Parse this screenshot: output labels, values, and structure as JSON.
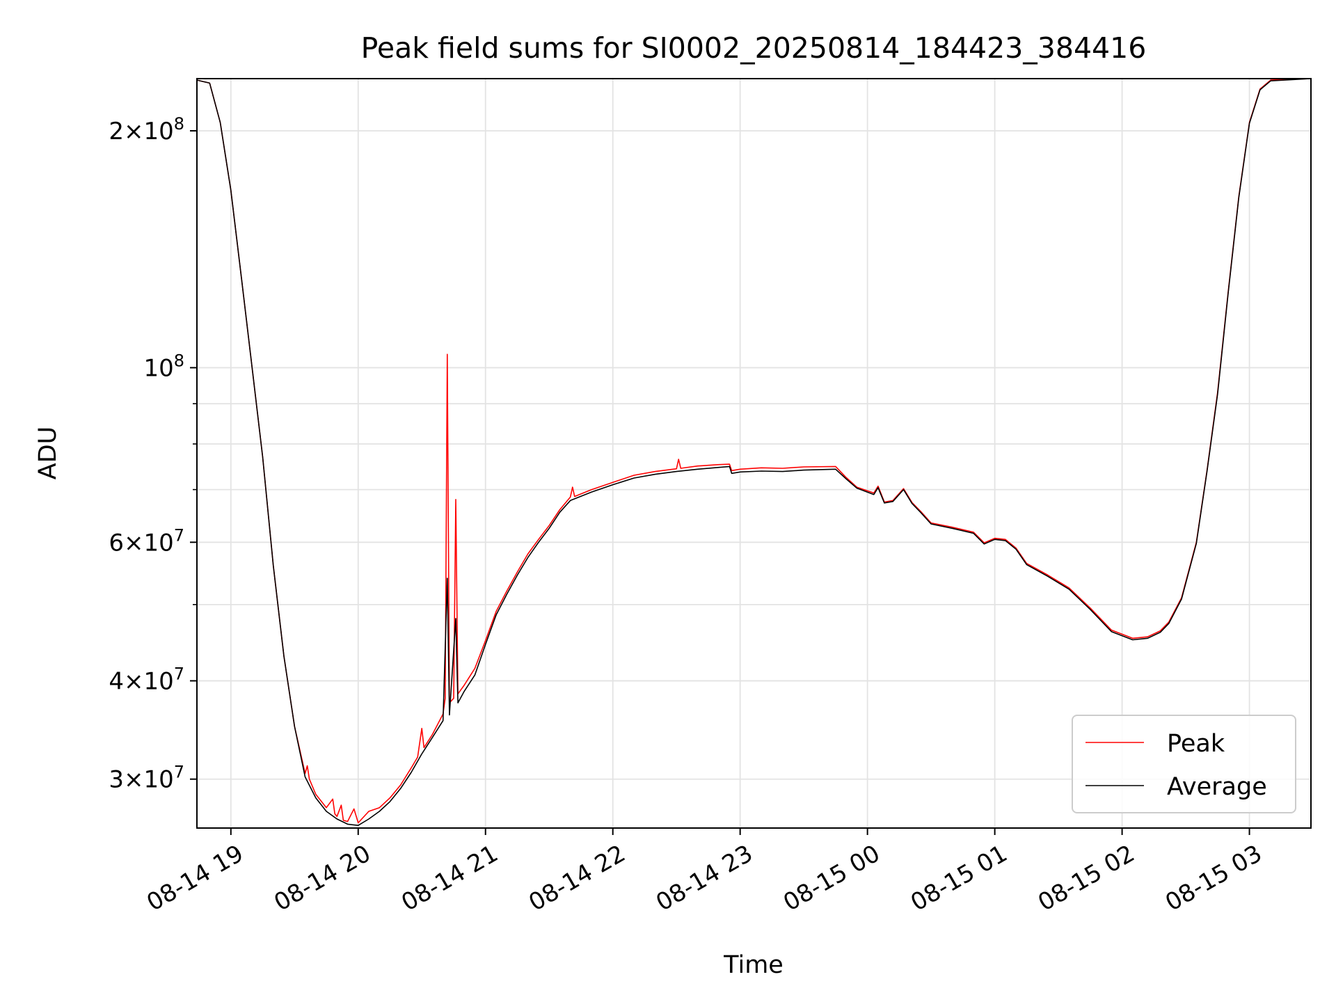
{
  "chart_data": {
    "type": "line",
    "title": "Peak field sums for SI0002_20250814_184423_384416",
    "xlabel": "Time",
    "ylabel": "ADU",
    "yscale": "log",
    "x_unit": "datetime",
    "xlim": [
      "2025-08-14 18:44",
      "2025-08-15 03:29"
    ],
    "ylim": [
      26000000,
      233000000
    ],
    "x_ticks": [
      {
        "t": "2025-08-14 19:00",
        "label": "08-14 19"
      },
      {
        "t": "2025-08-14 20:00",
        "label": "08-14 20"
      },
      {
        "t": "2025-08-14 21:00",
        "label": "08-14 21"
      },
      {
        "t": "2025-08-14 22:00",
        "label": "08-14 22"
      },
      {
        "t": "2025-08-14 23:00",
        "label": "08-14 23"
      },
      {
        "t": "2025-08-15 00:00",
        "label": "08-15 00"
      },
      {
        "t": "2025-08-15 01:00",
        "label": "08-15 01"
      },
      {
        "t": "2025-08-15 02:00",
        "label": "08-15 02"
      },
      {
        "t": "2025-08-15 03:00",
        "label": "08-15 03"
      }
    ],
    "y_major_ticks": [
      {
        "value": 30000000,
        "mant": "3",
        "exp": "7"
      },
      {
        "value": 40000000,
        "mant": "4",
        "exp": "7"
      },
      {
        "value": 60000000,
        "mant": "6",
        "exp": "7"
      },
      {
        "value": 100000000,
        "mant": "",
        "exp": "8"
      },
      {
        "value": 200000000,
        "mant": "2",
        "exp": "8"
      }
    ],
    "y_minor_ticks": [
      50000000,
      70000000,
      80000000,
      90000000
    ],
    "grid": true,
    "legend_position": "lower-right",
    "series": [
      {
        "name": "Peak",
        "color": "#ff0000",
        "points": [
          [
            "2025-08-14 18:44",
            232000000
          ],
          [
            "2025-08-14 18:50",
            230000000
          ],
          [
            "2025-08-14 18:55",
            205000000
          ],
          [
            "2025-08-14 19:00",
            168000000
          ],
          [
            "2025-08-14 19:05",
            130000000
          ],
          [
            "2025-08-14 19:10",
            100000000
          ],
          [
            "2025-08-14 19:15",
            77000000
          ],
          [
            "2025-08-14 19:20",
            56000000
          ],
          [
            "2025-08-14 19:25",
            43000000
          ],
          [
            "2025-08-14 19:30",
            35000000
          ],
          [
            "2025-08-14 19:35",
            30500000
          ],
          [
            "2025-08-14 19:36",
            31200000
          ],
          [
            "2025-08-14 19:37",
            30000000
          ],
          [
            "2025-08-14 19:40",
            28700000
          ],
          [
            "2025-08-14 19:45",
            27600000
          ],
          [
            "2025-08-14 19:48",
            28300000
          ],
          [
            "2025-08-14 19:49",
            27100000
          ],
          [
            "2025-08-14 19:50",
            26900000
          ],
          [
            "2025-08-14 19:52",
            27800000
          ],
          [
            "2025-08-14 19:53",
            26600000
          ],
          [
            "2025-08-14 19:55",
            26500000
          ],
          [
            "2025-08-14 19:58",
            27500000
          ],
          [
            "2025-08-14 20:00",
            26400000
          ],
          [
            "2025-08-14 20:05",
            27300000
          ],
          [
            "2025-08-14 20:10",
            27600000
          ],
          [
            "2025-08-14 20:15",
            28400000
          ],
          [
            "2025-08-14 20:20",
            29500000
          ],
          [
            "2025-08-14 20:25",
            31000000
          ],
          [
            "2025-08-14 20:28",
            32000000
          ],
          [
            "2025-08-14 20:30",
            34800000
          ],
          [
            "2025-08-14 20:31",
            32900000
          ],
          [
            "2025-08-14 20:35",
            34200000
          ],
          [
            "2025-08-14 20:40",
            36300000
          ],
          [
            "2025-08-14 20:41",
            38000000
          ],
          [
            "2025-08-14 20:42",
            104000000
          ],
          [
            "2025-08-14 20:43",
            37500000
          ],
          [
            "2025-08-14 20:45",
            38000000
          ],
          [
            "2025-08-14 20:46",
            68000000
          ],
          [
            "2025-08-14 20:47",
            38500000
          ],
          [
            "2025-08-14 20:50",
            39500000
          ],
          [
            "2025-08-14 20:55",
            41500000
          ],
          [
            "2025-08-14 21:00",
            45000000
          ],
          [
            "2025-08-14 21:05",
            49000000
          ],
          [
            "2025-08-14 21:10",
            52000000
          ],
          [
            "2025-08-14 21:15",
            55000000
          ],
          [
            "2025-08-14 21:20",
            58000000
          ],
          [
            "2025-08-14 21:25",
            60500000
          ],
          [
            "2025-08-14 21:30",
            63000000
          ],
          [
            "2025-08-14 21:35",
            66000000
          ],
          [
            "2025-08-14 21:40",
            68500000
          ],
          [
            "2025-08-14 21:41",
            70500000
          ],
          [
            "2025-08-14 21:42",
            68600000
          ],
          [
            "2025-08-14 21:50",
            70000000
          ],
          [
            "2025-08-14 22:00",
            71500000
          ],
          [
            "2025-08-14 22:10",
            73000000
          ],
          [
            "2025-08-14 22:20",
            73800000
          ],
          [
            "2025-08-14 22:30",
            74400000
          ],
          [
            "2025-08-14 22:31",
            76500000
          ],
          [
            "2025-08-14 22:32",
            74500000
          ],
          [
            "2025-08-14 22:40",
            75000000
          ],
          [
            "2025-08-14 22:50",
            75300000
          ],
          [
            "2025-08-14 22:55",
            75400000
          ],
          [
            "2025-08-14 22:56",
            74000000
          ],
          [
            "2025-08-14 23:00",
            74300000
          ],
          [
            "2025-08-14 23:10",
            74600000
          ],
          [
            "2025-08-14 23:20",
            74500000
          ],
          [
            "2025-08-14 23:30",
            74800000
          ],
          [
            "2025-08-14 23:45",
            74900000
          ],
          [
            "2025-08-14 23:50",
            72500000
          ],
          [
            "2025-08-14 23:55",
            70500000
          ],
          [
            "2025-08-15 00:03",
            69300000
          ],
          [
            "2025-08-15 00:05",
            70700000
          ],
          [
            "2025-08-15 00:08",
            67500000
          ],
          [
            "2025-08-15 00:12",
            67800000
          ],
          [
            "2025-08-15 00:17",
            70200000
          ],
          [
            "2025-08-15 00:21",
            67400000
          ],
          [
            "2025-08-15 00:25",
            65700000
          ],
          [
            "2025-08-15 00:30",
            63500000
          ],
          [
            "2025-08-15 00:40",
            62700000
          ],
          [
            "2025-08-15 00:50",
            61800000
          ],
          [
            "2025-08-15 00:55",
            59900000
          ],
          [
            "2025-08-15 01:00",
            60700000
          ],
          [
            "2025-08-15 01:05",
            60500000
          ],
          [
            "2025-08-15 01:10",
            59000000
          ],
          [
            "2025-08-15 01:15",
            56400000
          ],
          [
            "2025-08-15 01:25",
            54500000
          ],
          [
            "2025-08-15 01:35",
            52500000
          ],
          [
            "2025-08-15 01:45",
            49500000
          ],
          [
            "2025-08-15 01:55",
            46400000
          ],
          [
            "2025-08-15 02:05",
            45300000
          ],
          [
            "2025-08-15 02:12",
            45500000
          ],
          [
            "2025-08-15 02:18",
            46300000
          ],
          [
            "2025-08-15 02:22",
            47500000
          ],
          [
            "2025-08-15 02:28",
            51000000
          ],
          [
            "2025-08-15 02:35",
            60000000
          ],
          [
            "2025-08-15 02:40",
            74000000
          ],
          [
            "2025-08-15 02:45",
            93000000
          ],
          [
            "2025-08-15 02:50",
            125000000
          ],
          [
            "2025-08-15 02:55",
            165000000
          ],
          [
            "2025-08-15 03:00",
            205000000
          ],
          [
            "2025-08-15 03:05",
            226000000
          ],
          [
            "2025-08-15 03:10",
            232000000
          ],
          [
            "2025-08-15 03:29",
            233000000
          ]
        ]
      },
      {
        "name": "Average",
        "color": "#000000",
        "points": [
          [
            "2025-08-14 18:44",
            232000000
          ],
          [
            "2025-08-14 18:50",
            230000000
          ],
          [
            "2025-08-14 18:55",
            205000000
          ],
          [
            "2025-08-14 19:00",
            168000000
          ],
          [
            "2025-08-14 19:05",
            130000000
          ],
          [
            "2025-08-14 19:10",
            100000000
          ],
          [
            "2025-08-14 19:15",
            77000000
          ],
          [
            "2025-08-14 19:20",
            56000000
          ],
          [
            "2025-08-14 19:25",
            43000000
          ],
          [
            "2025-08-14 19:30",
            35000000
          ],
          [
            "2025-08-14 19:35",
            30200000
          ],
          [
            "2025-08-14 19:40",
            28400000
          ],
          [
            "2025-08-14 19:45",
            27300000
          ],
          [
            "2025-08-14 19:50",
            26700000
          ],
          [
            "2025-08-14 19:55",
            26300000
          ],
          [
            "2025-08-14 20:00",
            26200000
          ],
          [
            "2025-08-14 20:05",
            26700000
          ],
          [
            "2025-08-14 20:10",
            27300000
          ],
          [
            "2025-08-14 20:15",
            28100000
          ],
          [
            "2025-08-14 20:20",
            29200000
          ],
          [
            "2025-08-14 20:25",
            30600000
          ],
          [
            "2025-08-14 20:30",
            32300000
          ],
          [
            "2025-08-14 20:35",
            33900000
          ],
          [
            "2025-08-14 20:40",
            35600000
          ],
          [
            "2025-08-14 20:42",
            54000000
          ],
          [
            "2025-08-14 20:43",
            36200000
          ],
          [
            "2025-08-14 20:46",
            48000000
          ],
          [
            "2025-08-14 20:47",
            37500000
          ],
          [
            "2025-08-14 20:50",
            38800000
          ],
          [
            "2025-08-14 20:55",
            40700000
          ],
          [
            "2025-08-14 21:00",
            44500000
          ],
          [
            "2025-08-14 21:05",
            48500000
          ],
          [
            "2025-08-14 21:10",
            51500000
          ],
          [
            "2025-08-14 21:15",
            54500000
          ],
          [
            "2025-08-14 21:20",
            57400000
          ],
          [
            "2025-08-14 21:25",
            60000000
          ],
          [
            "2025-08-14 21:30",
            62500000
          ],
          [
            "2025-08-14 21:35",
            65500000
          ],
          [
            "2025-08-14 21:40",
            67800000
          ],
          [
            "2025-08-14 21:50",
            69500000
          ],
          [
            "2025-08-14 22:00",
            71000000
          ],
          [
            "2025-08-14 22:10",
            72400000
          ],
          [
            "2025-08-14 22:20",
            73200000
          ],
          [
            "2025-08-14 22:30",
            73800000
          ],
          [
            "2025-08-14 22:40",
            74300000
          ],
          [
            "2025-08-14 22:50",
            74700000
          ],
          [
            "2025-08-14 22:55",
            74900000
          ],
          [
            "2025-08-14 22:56",
            73400000
          ],
          [
            "2025-08-14 23:00",
            73700000
          ],
          [
            "2025-08-14 23:10",
            73900000
          ],
          [
            "2025-08-14 23:20",
            73800000
          ],
          [
            "2025-08-14 23:30",
            74100000
          ],
          [
            "2025-08-14 23:45",
            74300000
          ],
          [
            "2025-08-14 23:50",
            72200000
          ],
          [
            "2025-08-14 23:55",
            70300000
          ],
          [
            "2025-08-15 00:03",
            69000000
          ],
          [
            "2025-08-15 00:05",
            70400000
          ],
          [
            "2025-08-15 00:08",
            67300000
          ],
          [
            "2025-08-15 00:12",
            67600000
          ],
          [
            "2025-08-15 00:17",
            70000000
          ],
          [
            "2025-08-15 00:21",
            67200000
          ],
          [
            "2025-08-15 00:25",
            65500000
          ],
          [
            "2025-08-15 00:30",
            63300000
          ],
          [
            "2025-08-15 00:40",
            62500000
          ],
          [
            "2025-08-15 00:50",
            61600000
          ],
          [
            "2025-08-15 00:55",
            59700000
          ],
          [
            "2025-08-15 01:00",
            60500000
          ],
          [
            "2025-08-15 01:05",
            60300000
          ],
          [
            "2025-08-15 01:10",
            58800000
          ],
          [
            "2025-08-15 01:15",
            56200000
          ],
          [
            "2025-08-15 01:25",
            54300000
          ],
          [
            "2025-08-15 01:35",
            52300000
          ],
          [
            "2025-08-15 01:45",
            49300000
          ],
          [
            "2025-08-15 01:55",
            46200000
          ],
          [
            "2025-08-15 02:05",
            45100000
          ],
          [
            "2025-08-15 02:12",
            45300000
          ],
          [
            "2025-08-15 02:18",
            46100000
          ],
          [
            "2025-08-15 02:22",
            47300000
          ],
          [
            "2025-08-15 02:28",
            50800000
          ],
          [
            "2025-08-15 02:35",
            59800000
          ],
          [
            "2025-08-15 02:40",
            73800000
          ],
          [
            "2025-08-15 02:45",
            92500000
          ],
          [
            "2025-08-15 02:50",
            124500000
          ],
          [
            "2025-08-15 02:55",
            164500000
          ],
          [
            "2025-08-15 03:00",
            204500000
          ],
          [
            "2025-08-15 03:05",
            225500000
          ],
          [
            "2025-08-15 03:10",
            231500000
          ],
          [
            "2025-08-15 03:29",
            233000000
          ]
        ]
      }
    ]
  }
}
